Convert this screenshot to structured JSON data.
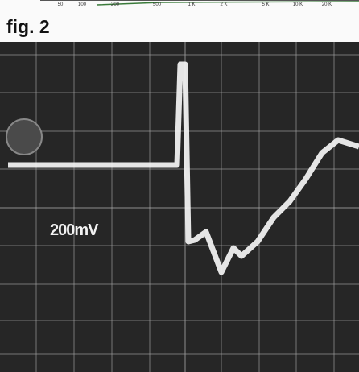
{
  "header": {
    "tick_labels": [
      "50",
      "100",
      "200",
      "500",
      "1 K",
      "2 K",
      "5 K",
      "10 K",
      "20 K"
    ]
  },
  "figure": {
    "caption": "fig. 2",
    "scope_label": "200mV"
  }
}
